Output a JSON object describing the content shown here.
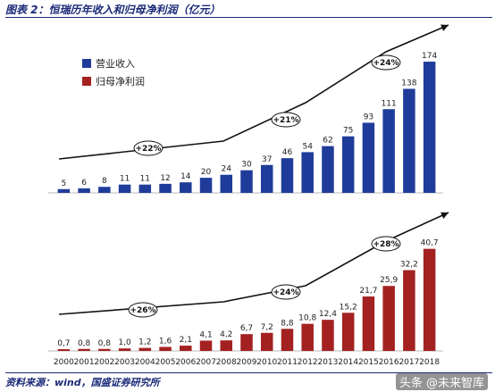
{
  "header": {
    "title": "图表 2：恒瑞历年收入和归母净利润（亿元）"
  },
  "footer": {
    "source": "资料来源：wind，国盛证券研究所",
    "watermark": "头条 @未来智库"
  },
  "colors": {
    "revenue": "#1f3c9a",
    "profit": "#a42121",
    "title": "#1b2a78",
    "arrow": "#111111"
  },
  "chart_data": [
    {
      "type": "bar",
      "categories": [
        "2000",
        "2001",
        "2002",
        "2003",
        "2004",
        "2005",
        "2006",
        "2007",
        "2008",
        "2009",
        "2010",
        "2011",
        "2012",
        "2013",
        "2014",
        "2015",
        "2016",
        "2017",
        "2018"
      ],
      "series": [
        {
          "name": "营业收入",
          "values": [
            5,
            6,
            8,
            11,
            11,
            12,
            14,
            20,
            24,
            30,
            37,
            46,
            54,
            62,
            75,
            93,
            111,
            138,
            174
          ]
        }
      ],
      "value_labels": [
        "5",
        "6",
        "8",
        "11",
        "11",
        "12",
        "14",
        "20",
        "24",
        "30",
        "37",
        "46",
        "54",
        "62",
        "75",
        "93",
        "111",
        "138",
        "174"
      ],
      "legend_position": "top-left",
      "growth_annotations": [
        "+22%",
        "+21%",
        "+24%"
      ],
      "ylim": [
        0,
        180
      ]
    },
    {
      "type": "bar",
      "categories": [
        "2000",
        "2001",
        "2002",
        "2003",
        "2004",
        "2005",
        "2006",
        "2007",
        "2008",
        "2009",
        "2010",
        "2011",
        "2012",
        "2013",
        "2014",
        "2015",
        "2016",
        "2017",
        "2018"
      ],
      "series": [
        {
          "name": "归母净利润",
          "values": [
            0.7,
            0.8,
            0.8,
            1.0,
            1.2,
            1.6,
            2.1,
            4.1,
            4.2,
            6.7,
            7.2,
            8.8,
            10.8,
            12.4,
            15.2,
            21.7,
            25.9,
            32.2,
            40.7
          ]
        }
      ],
      "value_labels": [
        "0,7",
        "0,8",
        "0,8",
        "1,0",
        "1,2",
        "1,6",
        "2,1",
        "4,1",
        "4,2",
        "6,7",
        "7,2",
        "8,8",
        "10,8",
        "12,4",
        "15,2",
        "21,7",
        "25,9",
        "32,2",
        "40,7"
      ],
      "growth_annotations": [
        "+26%",
        "+24%",
        "+28%"
      ],
      "ylim": [
        0,
        42
      ]
    }
  ]
}
